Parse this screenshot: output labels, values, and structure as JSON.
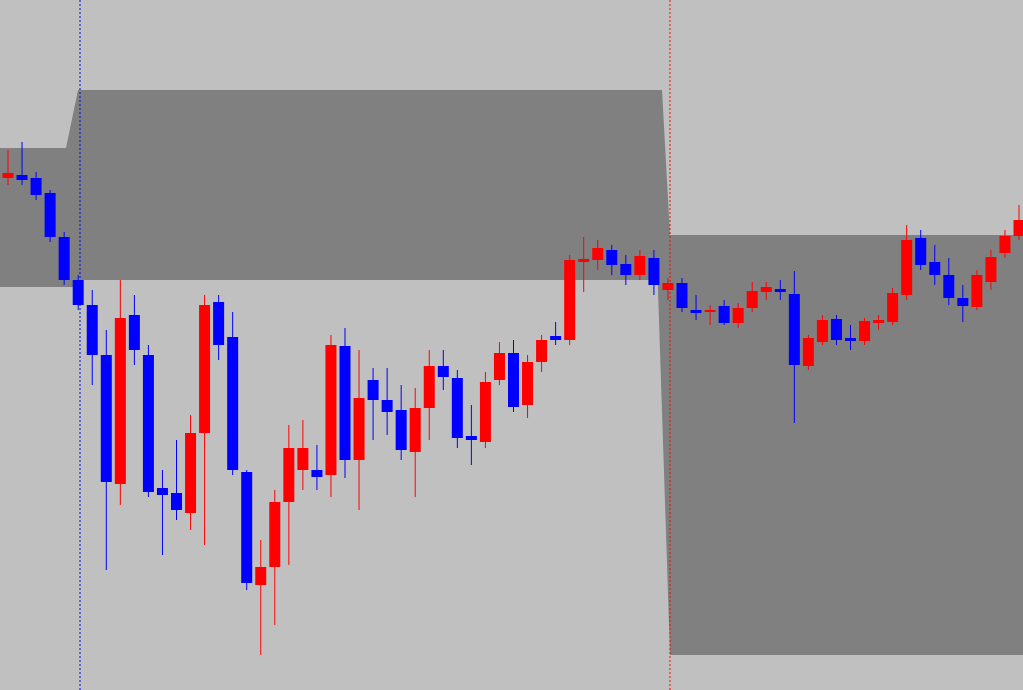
{
  "chart_data": {
    "type": "candlestick",
    "up_color": "#ff0000",
    "down_color": "#0000ff",
    "ylim": [
      0,
      690
    ],
    "open": [
      512,
      515,
      512,
      497,
      453,
      410,
      385,
      335,
      206,
      375,
      335,
      202,
      197,
      177,
      257,
      388,
      353,
      218,
      105,
      123,
      188,
      220,
      220,
      215,
      344,
      230,
      310,
      290,
      280,
      238,
      282,
      324,
      312,
      254,
      248,
      310,
      337,
      285,
      328,
      354,
      350,
      428,
      430,
      440,
      426,
      415,
      432,
      400,
      407,
      380,
      378,
      384,
      367,
      382,
      398,
      401,
      396,
      324,
      348,
      371,
      352,
      349,
      367,
      368,
      395,
      452,
      428,
      415,
      392,
      383,
      408,
      437,
      454
    ],
    "high": [
      540,
      548,
      518,
      500,
      458,
      415,
      400,
      360,
      410,
      395,
      345,
      220,
      250,
      275,
      395,
      395,
      378,
      220,
      150,
      200,
      265,
      270,
      245,
      355,
      362,
      340,
      322,
      322,
      305,
      302,
      340,
      340,
      320,
      285,
      318,
      348,
      350,
      335,
      355,
      368,
      435,
      453,
      450,
      445,
      435,
      440,
      440,
      412,
      412,
      395,
      385,
      390,
      387,
      408,
      408,
      410,
      419,
      355,
      375,
      375,
      365,
      372,
      375,
      402,
      465,
      460,
      445,
      432,
      405,
      420,
      440,
      460,
      485
    ],
    "low": [
      505,
      505,
      490,
      448,
      405,
      380,
      305,
      120,
      185,
      325,
      193,
      135,
      170,
      160,
      145,
      330,
      215,
      100,
      35,
      65,
      125,
      200,
      200,
      193,
      212,
      180,
      250,
      255,
      230,
      193,
      250,
      300,
      242,
      225,
      242,
      305,
      278,
      272,
      318,
      345,
      345,
      398,
      420,
      415,
      405,
      410,
      395,
      390,
      378,
      370,
      365,
      365,
      362,
      378,
      390,
      390,
      267,
      320,
      345,
      345,
      340,
      345,
      360,
      365,
      390,
      420,
      405,
      385,
      368,
      380,
      400,
      432,
      450
    ],
    "close": [
      517,
      510,
      495,
      453,
      410,
      385,
      335,
      208,
      372,
      340,
      198,
      195,
      180,
      257,
      385,
      345,
      220,
      107,
      123,
      188,
      242,
      242,
      213,
      345,
      230,
      292,
      290,
      278,
      240,
      282,
      324,
      313,
      252,
      250,
      308,
      337,
      283,
      328,
      350,
      350,
      430,
      431,
      442,
      425,
      415,
      434,
      405,
      407,
      382,
      377,
      380,
      367,
      382,
      399,
      403,
      398,
      325,
      352,
      370,
      350,
      349,
      369,
      370,
      397,
      450,
      425,
      415,
      392,
      384,
      415,
      433,
      454,
      470
    ]
  }
}
